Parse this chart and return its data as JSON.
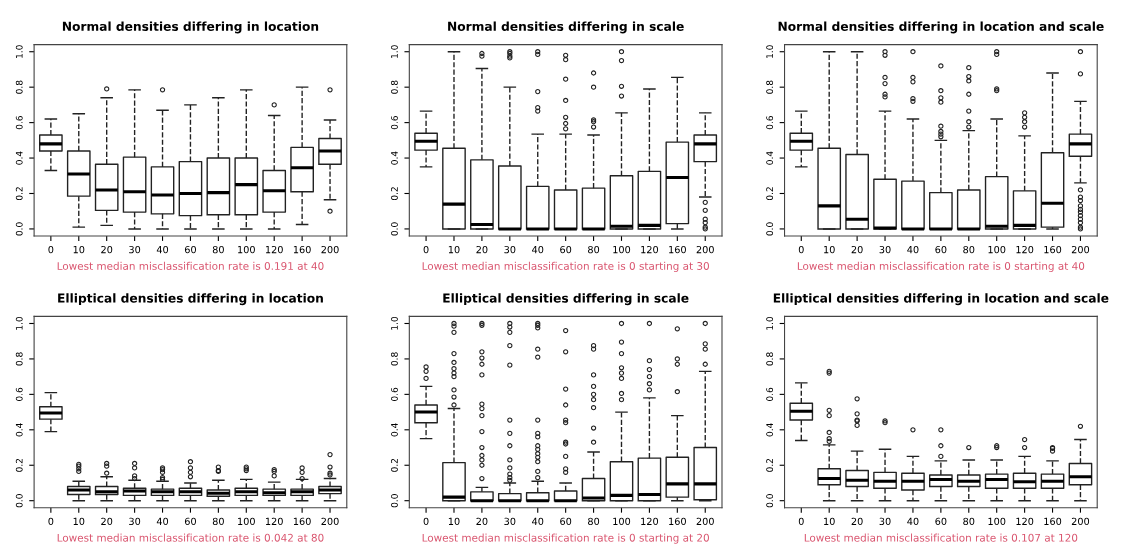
{
  "chart_data": [
    {
      "type": "box",
      "title": "Normal densities differing in location",
      "categories": [
        "0",
        "10",
        "20",
        "30",
        "40",
        "60",
        "80",
        "100",
        "120",
        "160",
        "200"
      ],
      "ylim": [
        -0.04,
        1.04
      ],
      "yticks": [
        {
          "value": 0,
          "label": "0.0"
        },
        {
          "value": 0.2,
          "label": "0.2"
        },
        {
          "value": 0.4,
          "label": "0.4"
        },
        {
          "value": 0.6,
          "label": "0.6"
        },
        {
          "value": 0.8,
          "label": "0.8"
        },
        {
          "value": 1,
          "label": "1.0"
        }
      ],
      "grid": false,
      "annotations": [
        "Lowest median misclassification rate is 0.191 at 40"
      ],
      "boxes": [
        {
          "low": 0.33,
          "q1": 0.44,
          "median": 0.48,
          "q3": 0.53,
          "high": 0.62
        },
        {
          "low": 0.01,
          "q1": 0.185,
          "median": 0.31,
          "q3": 0.44,
          "high": 0.65
        },
        {
          "low": 0.02,
          "q1": 0.105,
          "median": 0.22,
          "q3": 0.365,
          "high": 0.74,
          "outliers": [
            0.79
          ]
        },
        {
          "low": 0,
          "q1": 0.095,
          "median": 0.21,
          "q3": 0.405,
          "high": 0.785
        },
        {
          "low": 0,
          "q1": 0.085,
          "median": 0.191,
          "q3": 0.35,
          "high": 0.67,
          "outliers": [
            0.785
          ]
        },
        {
          "low": 0,
          "q1": 0.075,
          "median": 0.2,
          "q3": 0.38,
          "high": 0.7
        },
        {
          "low": 0,
          "q1": 0.08,
          "median": 0.205,
          "q3": 0.4,
          "high": 0.74
        },
        {
          "low": 0,
          "q1": 0.08,
          "median": 0.25,
          "q3": 0.4,
          "high": 0.785
        },
        {
          "low": 0,
          "q1": 0.095,
          "median": 0.215,
          "q3": 0.33,
          "high": 0.64,
          "outliers": [
            0.7
          ]
        },
        {
          "low": 0.025,
          "q1": 0.21,
          "median": 0.345,
          "q3": 0.46,
          "high": 0.8
        },
        {
          "low": 0.165,
          "q1": 0.365,
          "median": 0.44,
          "q3": 0.51,
          "high": 0.615,
          "outliers": [
            0.1,
            0.785
          ]
        }
      ]
    },
    {
      "type": "box",
      "title": "Normal densities differing in scale",
      "categories": [
        "0",
        "10",
        "20",
        "30",
        "40",
        "60",
        "80",
        "100",
        "120",
        "160",
        "200"
      ],
      "ylim": [
        -0.04,
        1.04
      ],
      "yticks": [
        {
          "value": 0,
          "label": "0.0"
        },
        {
          "value": 0.2,
          "label": "0.2"
        },
        {
          "value": 0.4,
          "label": "0.4"
        },
        {
          "value": 0.6,
          "label": "0.6"
        },
        {
          "value": 0.8,
          "label": "0.8"
        },
        {
          "value": 1,
          "label": "1.0"
        }
      ],
      "grid": false,
      "annotations": [
        "Lowest median misclassification rate is 0 starting at 30"
      ],
      "boxes": [
        {
          "low": 0.35,
          "q1": 0.445,
          "median": 0.495,
          "q3": 0.54,
          "high": 0.665
        },
        {
          "low": 0,
          "q1": 0,
          "median": 0.14,
          "q3": 0.455,
          "high": 1.0
        },
        {
          "low": 0,
          "q1": 0,
          "median": 0.025,
          "q3": 0.39,
          "high": 0.905,
          "outliers": [
            0.975,
            0.99
          ]
        },
        {
          "low": 0,
          "q1": 0,
          "median": 0,
          "q3": 0.355,
          "high": 0.8,
          "outliers": [
            0.965,
            0.975,
            0.99,
            1.0
          ]
        },
        {
          "low": 0,
          "q1": 0,
          "median": 0,
          "q3": 0.24,
          "high": 0.535,
          "outliers": [
            0.665,
            0.685,
            0.775,
            0.985,
            1.0
          ]
        },
        {
          "low": 0,
          "q1": 0,
          "median": 0,
          "q3": 0.22,
          "high": 0.535,
          "outliers": [
            0.565,
            0.595,
            0.63,
            0.725,
            0.845,
            0.955,
            0.98
          ]
        },
        {
          "low": 0,
          "q1": 0,
          "median": 0,
          "q3": 0.23,
          "high": 0.53,
          "outliers": [
            0.575,
            0.605,
            0.615,
            0.8,
            0.88
          ]
        },
        {
          "low": 0,
          "q1": 0,
          "median": 0.015,
          "q3": 0.3,
          "high": 0.655,
          "outliers": [
            0.75,
            0.805,
            0.95,
            1.0
          ]
        },
        {
          "low": 0,
          "q1": 0,
          "median": 0.02,
          "q3": 0.325,
          "high": 0.79
        },
        {
          "low": 0,
          "q1": 0.03,
          "median": 0.29,
          "q3": 0.49,
          "high": 0.855
        },
        {
          "low": 0.18,
          "q1": 0.38,
          "median": 0.48,
          "q3": 0.53,
          "high": 0.655,
          "outliers": [
            0,
            0.01,
            0.035,
            0.055,
            0.105,
            0.15
          ]
        }
      ]
    },
    {
      "type": "box",
      "title": "Normal densities differing in location and scale",
      "categories": [
        "0",
        "10",
        "20",
        "30",
        "40",
        "60",
        "80",
        "100",
        "120",
        "160",
        "200"
      ],
      "ylim": [
        -0.04,
        1.04
      ],
      "yticks": [
        {
          "value": 0,
          "label": "0.0"
        },
        {
          "value": 0.2,
          "label": "0.2"
        },
        {
          "value": 0.4,
          "label": "0.4"
        },
        {
          "value": 0.6,
          "label": "0.6"
        },
        {
          "value": 0.8,
          "label": "0.8"
        },
        {
          "value": 1,
          "label": "1.0"
        }
      ],
      "grid": false,
      "annotations": [
        "Lowest median misclassification rate is 0 starting at 40"
      ],
      "boxes": [
        {
          "low": 0.35,
          "q1": 0.445,
          "median": 0.495,
          "q3": 0.54,
          "high": 0.665
        },
        {
          "low": 0,
          "q1": 0,
          "median": 0.13,
          "q3": 0.455,
          "high": 1.0
        },
        {
          "low": 0,
          "q1": 0,
          "median": 0.055,
          "q3": 0.42,
          "high": 1.0
        },
        {
          "low": 0,
          "q1": 0,
          "median": 0.005,
          "q3": 0.28,
          "high": 0.665,
          "outliers": [
            0.745,
            0.76,
            0.82,
            0.855,
            0.98,
            1.0
          ]
        },
        {
          "low": 0,
          "q1": 0,
          "median": 0,
          "q3": 0.27,
          "high": 0.62,
          "outliers": [
            0.72,
            0.735,
            0.83,
            0.855,
            1.0
          ]
        },
        {
          "low": 0,
          "q1": 0,
          "median": 0,
          "q3": 0.205,
          "high": 0.5,
          "outliers": [
            0.52,
            0.535,
            0.55,
            0.58,
            0.715,
            0.74,
            0.78,
            0.92
          ]
        },
        {
          "low": 0,
          "q1": 0,
          "median": 0,
          "q3": 0.22,
          "high": 0.555,
          "outliers": [
            0.575,
            0.605,
            0.665,
            0.76,
            0.835,
            0.86,
            0.91
          ]
        },
        {
          "low": 0,
          "q1": 0,
          "median": 0.015,
          "q3": 0.295,
          "high": 0.62,
          "outliers": [
            0.78,
            0.79,
            0.985,
            1.0
          ]
        },
        {
          "low": 0,
          "q1": 0,
          "median": 0.02,
          "q3": 0.215,
          "high": 0.525,
          "outliers": [
            0.575,
            0.605,
            0.63,
            0.655
          ]
        },
        {
          "low": 0,
          "q1": 0.01,
          "median": 0.145,
          "q3": 0.43,
          "high": 0.88
        },
        {
          "low": 0.26,
          "q1": 0.41,
          "median": 0.48,
          "q3": 0.535,
          "high": 0.72,
          "outliers": [
            0,
            0.01,
            0.035,
            0.055,
            0.075,
            0.095,
            0.11,
            0.13,
            0.16,
            0.18,
            0.22,
            0.875,
            1.0
          ]
        }
      ]
    },
    {
      "type": "box",
      "title": "Elliptical densities differing in location",
      "categories": [
        "0",
        "10",
        "20",
        "30",
        "40",
        "60",
        "80",
        "100",
        "120",
        "160",
        "200"
      ],
      "ylim": [
        -0.04,
        1.04
      ],
      "yticks": [
        {
          "value": 0,
          "label": "0.0"
        },
        {
          "value": 0.2,
          "label": "0.2"
        },
        {
          "value": 0.4,
          "label": "0.4"
        },
        {
          "value": 0.6,
          "label": "0.6"
        },
        {
          "value": 0.8,
          "label": "0.8"
        },
        {
          "value": 1,
          "label": "1.0"
        }
      ],
      "grid": false,
      "annotations": [
        "Lowest median misclassification rate is 0.042 at 80"
      ],
      "boxes": [
        {
          "low": 0.39,
          "q1": 0.46,
          "median": 0.495,
          "q3": 0.53,
          "high": 0.61
        },
        {
          "low": 0,
          "q1": 0.035,
          "median": 0.06,
          "q3": 0.08,
          "high": 0.11,
          "outliers": [
            0.165,
            0.18,
            0.195,
            0.205
          ]
        },
        {
          "low": 0,
          "q1": 0.035,
          "median": 0.05,
          "q3": 0.08,
          "high": 0.135,
          "outliers": [
            0.155,
            0.195,
            0.21
          ]
        },
        {
          "low": 0,
          "q1": 0.03,
          "median": 0.055,
          "q3": 0.07,
          "high": 0.115,
          "outliers": [
            0.125,
            0.14,
            0.185,
            0.21
          ]
        },
        {
          "low": 0,
          "q1": 0.03,
          "median": 0.05,
          "q3": 0.065,
          "high": 0.11,
          "outliers": [
            0.12,
            0.13,
            0.16,
            0.175,
            0.185
          ]
        },
        {
          "low": 0,
          "q1": 0.03,
          "median": 0.05,
          "q3": 0.07,
          "high": 0.1,
          "outliers": [
            0.135,
            0.16,
            0.185,
            0.22
          ]
        },
        {
          "low": 0,
          "q1": 0.025,
          "median": 0.042,
          "q3": 0.06,
          "high": 0.115,
          "outliers": [
            0.165,
            0.17,
            0.19
          ]
        },
        {
          "low": 0,
          "q1": 0.03,
          "median": 0.05,
          "q3": 0.07,
          "high": 0.12,
          "outliers": [
            0.17,
            0.18,
            0.19
          ]
        },
        {
          "low": 0,
          "q1": 0.03,
          "median": 0.045,
          "q3": 0.065,
          "high": 0.105,
          "outliers": [
            0.14,
            0.165,
            0.175
          ]
        },
        {
          "low": 0,
          "q1": 0.03,
          "median": 0.05,
          "q3": 0.065,
          "high": 0.12,
          "outliers": [
            0.125,
            0.16,
            0.185
          ]
        },
        {
          "low": 0,
          "q1": 0.04,
          "median": 0.06,
          "q3": 0.08,
          "high": 0.125,
          "outliers": [
            0.145,
            0.155,
            0.19,
            0.26
          ]
        }
      ]
    },
    {
      "type": "box",
      "title": "Elliptical densities differing in scale",
      "categories": [
        "0",
        "10",
        "20",
        "30",
        "40",
        "60",
        "80",
        "100",
        "120",
        "160",
        "200"
      ],
      "ylim": [
        -0.04,
        1.04
      ],
      "yticks": [
        {
          "value": 0,
          "label": "0.0"
        },
        {
          "value": 0.2,
          "label": "0.2"
        },
        {
          "value": 0.4,
          "label": "0.4"
        },
        {
          "value": 0.6,
          "label": "0.6"
        },
        {
          "value": 0.8,
          "label": "0.8"
        },
        {
          "value": 1,
          "label": "1.0"
        }
      ],
      "grid": false,
      "annotations": [
        "Lowest median misclassification rate is 0 starting at 20"
      ],
      "boxes": [
        {
          "low": 0.35,
          "q1": 0.44,
          "median": 0.5,
          "q3": 0.54,
          "high": 0.645,
          "outliers": [
            0.69,
            0.73,
            0.755
          ]
        },
        {
          "low": 0,
          "q1": 0,
          "median": 0.02,
          "q3": 0.215,
          "high": 0.52,
          "outliers": [
            0.54,
            0.585,
            0.625,
            0.7,
            0.72,
            0.745,
            0.78,
            0.83,
            0.95,
            0.985,
            1.0
          ]
        },
        {
          "low": 0,
          "q1": 0,
          "median": 0,
          "q3": 0.05,
          "high": 0.075,
          "outliers": [
            0.125,
            0.2,
            0.23,
            0.255,
            0.3,
            0.39,
            0.48,
            0.52,
            0.545,
            0.71,
            0.77,
            0.805,
            0.84,
            0.99,
            1.0
          ]
        },
        {
          "low": 0,
          "q1": 0,
          "median": 0,
          "q3": 0.04,
          "high": 0.1,
          "outliers": [
            0.115,
            0.13,
            0.15,
            0.185,
            0.23,
            0.31,
            0.38,
            0.455,
            0.765,
            0.875,
            0.95,
            0.98,
            1.0
          ]
        },
        {
          "low": 0,
          "q1": 0,
          "median": 0,
          "q3": 0.045,
          "high": 0.11,
          "outliers": [
            0.13,
            0.165,
            0.22,
            0.245,
            0.265,
            0.29,
            0.31,
            0.36,
            0.38,
            0.455,
            0.81,
            0.855,
            0.975,
            0.99,
            1.0
          ]
        },
        {
          "low": 0,
          "q1": 0,
          "median": 0,
          "q3": 0.055,
          "high": 0.1,
          "outliers": [
            0.16,
            0.18,
            0.25,
            0.32,
            0.33,
            0.44,
            0.455,
            0.54,
            0.63,
            0.84,
            0.96
          ]
        },
        {
          "low": 0,
          "q1": 0,
          "median": 0.015,
          "q3": 0.125,
          "high": 0.275,
          "outliers": [
            0.33,
            0.41,
            0.525,
            0.57,
            0.6,
            0.645,
            0.71,
            0.855,
            0.875
          ]
        },
        {
          "low": 0,
          "q1": 0,
          "median": 0.03,
          "q3": 0.22,
          "high": 0.5,
          "outliers": [
            0.57,
            0.605,
            0.69,
            0.72,
            0.75,
            0.83,
            0.895,
            1.0
          ]
        },
        {
          "low": 0,
          "q1": 0,
          "median": 0.035,
          "q3": 0.24,
          "high": 0.58,
          "outliers": [
            0.625,
            0.66,
            0.7,
            0.74,
            0.79,
            1.0
          ]
        },
        {
          "low": 0,
          "q1": 0.02,
          "median": 0.095,
          "q3": 0.245,
          "high": 0.48,
          "outliers": [
            0.615,
            0.77,
            0.8,
            0.97
          ]
        },
        {
          "low": 0,
          "q1": 0.005,
          "median": 0.095,
          "q3": 0.3,
          "high": 0.73,
          "outliers": [
            0.77,
            0.855,
            0.885,
            1.0
          ]
        }
      ]
    },
    {
      "type": "box",
      "title": "Elliptical densities differing in location and scale",
      "categories": [
        "0",
        "10",
        "20",
        "30",
        "40",
        "60",
        "80",
        "100",
        "120",
        "160",
        "200"
      ],
      "ylim": [
        -0.04,
        1.04
      ],
      "yticks": [
        {
          "value": 0,
          "label": "0.0"
        },
        {
          "value": 0.2,
          "label": "0.2"
        },
        {
          "value": 0.4,
          "label": "0.4"
        },
        {
          "value": 0.6,
          "label": "0.6"
        },
        {
          "value": 0.8,
          "label": "0.8"
        },
        {
          "value": 1,
          "label": "1.0"
        }
      ],
      "grid": false,
      "annotations": [
        "Lowest median misclassification rate is 0.107 at 120"
      ],
      "boxes": [
        {
          "low": 0.34,
          "q1": 0.455,
          "median": 0.505,
          "q3": 0.55,
          "high": 0.665
        },
        {
          "low": 0,
          "q1": 0.09,
          "median": 0.125,
          "q3": 0.18,
          "high": 0.315,
          "outliers": [
            0.335,
            0.35,
            0.385,
            0.48,
            0.51,
            0.72,
            0.73
          ]
        },
        {
          "low": 0,
          "q1": 0.08,
          "median": 0.115,
          "q3": 0.17,
          "high": 0.28,
          "outliers": [
            0.425,
            0.45,
            0.455,
            0.49,
            0.575
          ]
        },
        {
          "low": 0,
          "q1": 0.07,
          "median": 0.11,
          "q3": 0.16,
          "high": 0.29,
          "outliers": [
            0.44,
            0.45
          ]
        },
        {
          "low": 0,
          "q1": 0.06,
          "median": 0.11,
          "q3": 0.155,
          "high": 0.25,
          "outliers": [
            0.4
          ]
        },
        {
          "low": 0,
          "q1": 0.08,
          "median": 0.12,
          "q3": 0.145,
          "high": 0.225,
          "outliers": [
            0.25,
            0.31,
            0.4
          ]
        },
        {
          "low": 0,
          "q1": 0.08,
          "median": 0.11,
          "q3": 0.145,
          "high": 0.23,
          "outliers": [
            0.3
          ]
        },
        {
          "low": 0,
          "q1": 0.07,
          "median": 0.12,
          "q3": 0.15,
          "high": 0.23,
          "outliers": [
            0.3,
            0.31
          ]
        },
        {
          "low": 0,
          "q1": 0.07,
          "median": 0.107,
          "q3": 0.155,
          "high": 0.25,
          "outliers": [
            0.3,
            0.345
          ]
        },
        {
          "low": 0,
          "q1": 0.07,
          "median": 0.11,
          "q3": 0.15,
          "high": 0.225,
          "outliers": [
            0.28,
            0.295,
            0.3
          ]
        },
        {
          "low": 0,
          "q1": 0.09,
          "median": 0.135,
          "q3": 0.21,
          "high": 0.345,
          "outliers": [
            0.42
          ]
        }
      ]
    }
  ]
}
